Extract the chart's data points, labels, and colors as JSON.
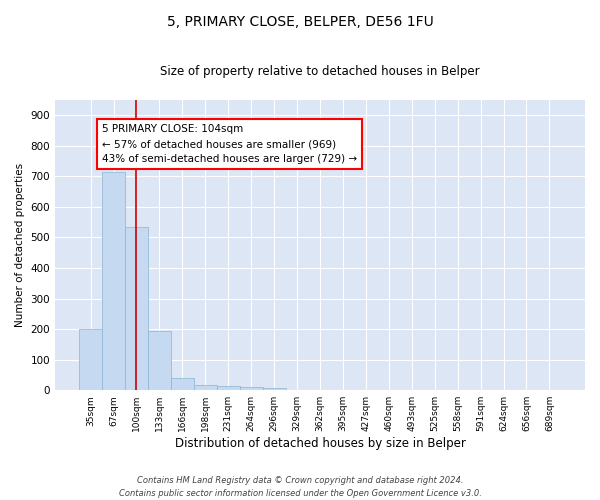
{
  "title": "5, PRIMARY CLOSE, BELPER, DE56 1FU",
  "subtitle": "Size of property relative to detached houses in Belper",
  "xlabel": "Distribution of detached houses by size in Belper",
  "ylabel": "Number of detached properties",
  "bar_color": "#c5d9f1",
  "bar_edge_color": "#8cb4d5",
  "bar_width": 1.0,
  "bins": [
    "35sqm",
    "67sqm",
    "100sqm",
    "133sqm",
    "166sqm",
    "198sqm",
    "231sqm",
    "264sqm",
    "296sqm",
    "329sqm",
    "362sqm",
    "395sqm",
    "427sqm",
    "460sqm",
    "493sqm",
    "525sqm",
    "558sqm",
    "591sqm",
    "624sqm",
    "656sqm",
    "689sqm"
  ],
  "values": [
    200,
    715,
    535,
    195,
    40,
    17,
    13,
    10,
    8,
    0,
    0,
    0,
    0,
    0,
    0,
    0,
    0,
    0,
    0,
    0,
    0
  ],
  "property_line_x": 2.0,
  "annotation_line1": "5 PRIMARY CLOSE: 104sqm",
  "annotation_line2": "← 57% of detached houses are smaller (969)",
  "annotation_line3": "43% of semi-detached houses are larger (729) →",
  "annotation_box_color": "white",
  "annotation_box_edge_color": "red",
  "annotation_fontsize": 7.5,
  "red_line_color": "#cc0000",
  "ylim": [
    0,
    950
  ],
  "yticks": [
    0,
    100,
    200,
    300,
    400,
    500,
    600,
    700,
    800,
    900
  ],
  "background_color": "#dce6f5",
  "grid_color": "white",
  "title_fontsize": 10,
  "subtitle_fontsize": 8.5,
  "ylabel_fontsize": 7.5,
  "xlabel_fontsize": 8.5,
  "tick_fontsize": 6.5,
  "ytick_fontsize": 7.5,
  "footer_line1": "Contains HM Land Registry data © Crown copyright and database right 2024.",
  "footer_line2": "Contains public sector information licensed under the Open Government Licence v3.0."
}
